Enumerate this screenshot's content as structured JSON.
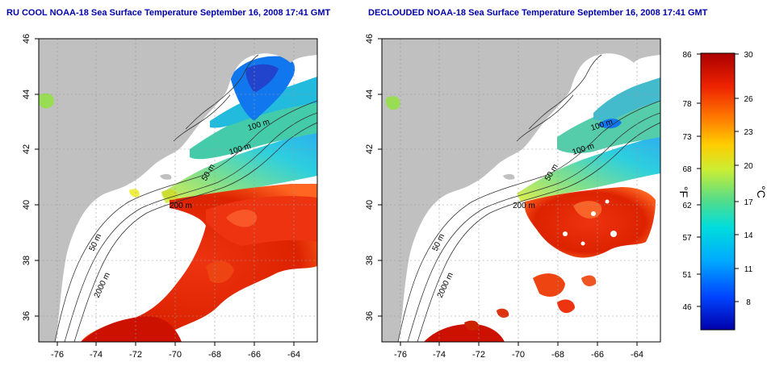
{
  "titles": {
    "left": "RU COOL NOAA-18 Sea Surface Temperature September 16, 2008 17:41 GMT",
    "right": "DECLOUDED NOAA-18 Sea Surface Temperature September 16, 2008 17:41 GMT"
  },
  "axes": {
    "lon_ticks": [
      "-76",
      "-74",
      "-72",
      "-70",
      "-68",
      "-66",
      "-64"
    ],
    "lat_ticks": [
      "36",
      "38",
      "40",
      "42",
      "44",
      "46"
    ]
  },
  "contour_labels": [
    "100 m",
    "100 m",
    "50 m",
    "200 m",
    "50 m",
    "2000 m"
  ],
  "colorbar": {
    "fahrenheit_label": "°F",
    "celsius_label": "°C",
    "fahrenheit_ticks": [
      "86",
      "78",
      "73",
      "68",
      "62",
      "57",
      "51",
      "46"
    ],
    "celsius_ticks": [
      "30",
      "26",
      "23",
      "20",
      "17",
      "14",
      "11",
      "8"
    ],
    "range_c": [
      5,
      30
    ]
  },
  "colors": {
    "land": "#c0c0c0",
    "title": "#0000aa",
    "warm": "#cc1100",
    "cold": "#1133cc"
  }
}
